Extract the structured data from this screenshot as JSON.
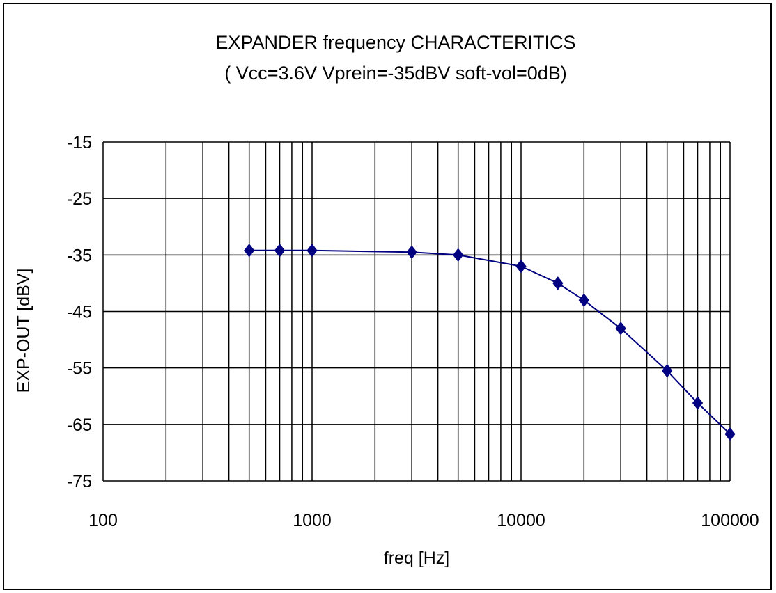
{
  "chart_data": {
    "type": "line",
    "title": "EXPANDER frequency CHARACTERITICS",
    "subtitle": "( Vcc=3.6V Vprein=-35dBV soft-vol=0dB)",
    "xlabel": "freq [Hz]",
    "ylabel": "EXP-OUT [dBV]",
    "xscale": "log",
    "xlim": [
      100,
      100000
    ],
    "ylim": [
      -75,
      -15
    ],
    "x_ticks": [
      "100",
      "1000",
      "10000",
      "100000"
    ],
    "y_ticks": [
      "-15",
      "-25",
      "-35",
      "-45",
      "-55",
      "-65",
      "-75"
    ],
    "grid": true,
    "legend": "none",
    "colors": {
      "series": "#000080",
      "grid": "#000000"
    },
    "series": [
      {
        "x": [
          500,
          700,
          1000,
          3000,
          5000,
          10000,
          15000,
          20000,
          30000,
          50000,
          70000,
          100000
        ],
        "values": [
          -34.2,
          -34.2,
          -34.2,
          -34.5,
          -35.0,
          -37.0,
          -40.0,
          -43.0,
          -48.0,
          -55.5,
          -61.2,
          -66.7
        ]
      }
    ]
  }
}
